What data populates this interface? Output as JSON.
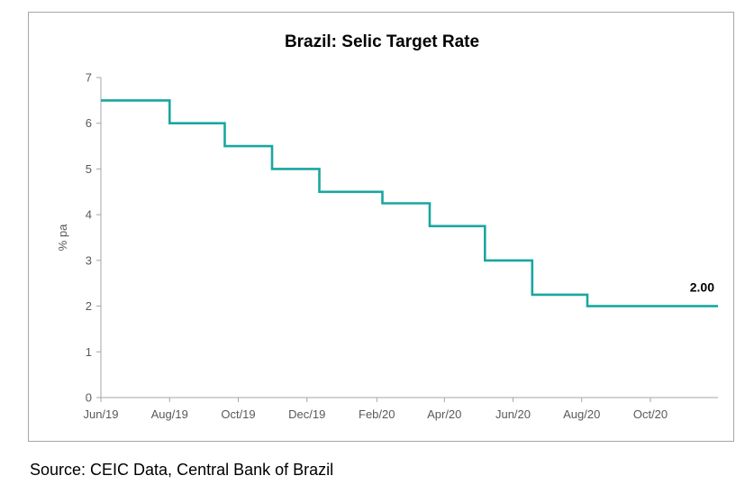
{
  "source_note": "Source: CEIC Data, Central Bank of Brazil",
  "chart_data": {
    "type": "line",
    "step": true,
    "title": "Brazil: Selic Target Rate",
    "xlabel": "",
    "ylabel": "% pa",
    "ylim": [
      0,
      7
    ],
    "yticks": [
      0,
      1,
      2,
      3,
      4,
      5,
      6,
      7
    ],
    "xlim": [
      "2019-06-01",
      "2020-11-30"
    ],
    "xtick_labels": [
      "Jun/19",
      "Aug/19",
      "Oct/19",
      "Dec/19",
      "Feb/20",
      "Apr/20",
      "Jun/20",
      "Aug/20",
      "Oct/20"
    ],
    "xtick_dates": [
      "2019-06-01",
      "2019-08-01",
      "2019-10-01",
      "2019-12-01",
      "2020-02-01",
      "2020-04-01",
      "2020-06-01",
      "2020-08-01",
      "2020-10-01"
    ],
    "grid": false,
    "line_color": "#1aa6a0",
    "series": [
      {
        "points": [
          {
            "date": "2019-06-01",
            "value": 6.5
          },
          {
            "date": "2019-08-01",
            "value": 6.0
          },
          {
            "date": "2019-09-19",
            "value": 5.5
          },
          {
            "date": "2019-10-31",
            "value": 5.0
          },
          {
            "date": "2019-12-12",
            "value": 4.5
          },
          {
            "date": "2020-02-06",
            "value": 4.25
          },
          {
            "date": "2020-03-19",
            "value": 3.75
          },
          {
            "date": "2020-05-07",
            "value": 3.0
          },
          {
            "date": "2020-06-18",
            "value": 2.25
          },
          {
            "date": "2020-08-06",
            "value": 2.0
          },
          {
            "date": "2020-11-30",
            "value": 2.0
          }
        ]
      }
    ],
    "annotations": [
      {
        "text": "2.00",
        "date": "2020-11-30",
        "value": 2.0
      }
    ]
  }
}
